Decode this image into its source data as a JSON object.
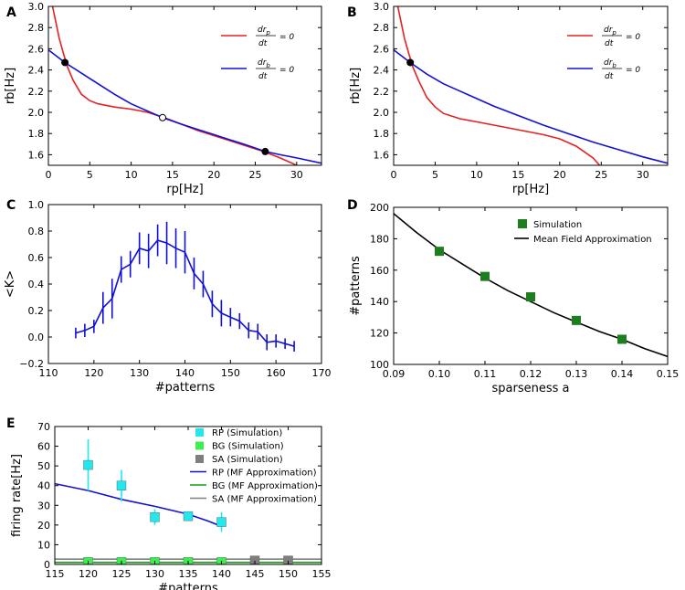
{
  "colors": {
    "red": "#e82020",
    "blue": "#1010d8",
    "cyan": "#22e8ee",
    "green_sim": "#1e7d1e",
    "bg_green": "#3cee50",
    "sa_gray": "#7f7f7f",
    "mf_green": "#12a012"
  },
  "chart_data": [
    {
      "panel": "A",
      "type": "line",
      "xlabel": "rp[Hz]",
      "ylabel": "rb[Hz]",
      "xlim": [
        0,
        33
      ],
      "ylim": [
        1.5,
        3.0
      ],
      "xticks": [
        0,
        5,
        10,
        15,
        20,
        25,
        30
      ],
      "yticks": [
        1.6,
        1.8,
        2.0,
        2.2,
        2.4,
        2.6,
        2.8,
        3.0
      ],
      "ytick_labels": [
        "1.6",
        "1.8",
        "2.0",
        "2.2",
        "2.4",
        "2.6",
        "2.8",
        "3.0"
      ],
      "series": [
        {
          "name": "drp/dt = 0",
          "color": "#e82020",
          "x": [
            0.5,
            0.9,
            1.3,
            1.8,
            2.3,
            3,
            4,
            5,
            6,
            8,
            10,
            12,
            14,
            16,
            18,
            20,
            22,
            24,
            26,
            28,
            30
          ],
          "y": [
            3.0,
            2.85,
            2.7,
            2.56,
            2.43,
            2.3,
            2.17,
            2.11,
            2.08,
            2.05,
            2.03,
            2.0,
            1.95,
            1.89,
            1.83,
            1.78,
            1.73,
            1.68,
            1.63,
            1.57,
            1.5
          ]
        },
        {
          "name": "drb/dt = 0",
          "color": "#1010d8",
          "x": [
            0,
            2,
            5,
            8,
            10,
            13.8,
            16,
            18,
            20,
            22,
            24,
            26.2,
            28,
            30,
            33
          ],
          "y": [
            2.59,
            2.47,
            2.32,
            2.17,
            2.08,
            1.95,
            1.89,
            1.84,
            1.79,
            1.74,
            1.69,
            1.63,
            1.6,
            1.57,
            1.52
          ]
        }
      ],
      "fixed_points": [
        {
          "x": 2.0,
          "y": 2.47,
          "stable": true
        },
        {
          "x": 13.8,
          "y": 1.95,
          "stable": false
        },
        {
          "x": 26.2,
          "y": 1.63,
          "stable": true
        }
      ],
      "legend": [
        {
          "num": "dr",
          "sub": "p",
          "den": "dt",
          "eq": "= 0",
          "color": "#e82020"
        },
        {
          "num": "dr",
          "sub": "b",
          "den": "dt",
          "eq": "= 0",
          "color": "#1010d8"
        }
      ]
    },
    {
      "panel": "B",
      "type": "line",
      "xlabel": "rp[Hz]",
      "ylabel": "rb[Hz]",
      "xlim": [
        0,
        33
      ],
      "ylim": [
        1.5,
        3.0
      ],
      "xticks": [
        0,
        5,
        10,
        15,
        20,
        25,
        30
      ],
      "yticks": [
        1.6,
        1.8,
        2.0,
        2.2,
        2.4,
        2.6,
        2.8,
        3.0
      ],
      "ytick_labels": [
        "1.6",
        "1.8",
        "2.0",
        "2.2",
        "2.4",
        "2.6",
        "2.8",
        "3.0"
      ],
      "series": [
        {
          "name": "drp/dt = 0",
          "color": "#e82020",
          "x": [
            0.5,
            0.9,
            1.3,
            1.8,
            2.3,
            3,
            4,
            5,
            6,
            8,
            10,
            12,
            14,
            16,
            18,
            20,
            22,
            24,
            24.8
          ],
          "y": [
            3.0,
            2.85,
            2.7,
            2.56,
            2.43,
            2.3,
            2.14,
            2.05,
            1.99,
            1.94,
            1.91,
            1.88,
            1.85,
            1.82,
            1.79,
            1.75,
            1.68,
            1.57,
            1.5
          ]
        },
        {
          "name": "drb/dt = 0",
          "color": "#1010d8",
          "x": [
            0,
            2,
            4,
            6,
            8,
            10,
            12,
            15,
            18,
            21,
            24,
            27,
            30,
            33
          ],
          "y": [
            2.59,
            2.47,
            2.36,
            2.27,
            2.2,
            2.13,
            2.06,
            1.97,
            1.88,
            1.8,
            1.72,
            1.65,
            1.58,
            1.52
          ]
        }
      ],
      "fixed_points": [
        {
          "x": 2.0,
          "y": 2.47,
          "stable": true
        }
      ],
      "legend": [
        {
          "num": "dr",
          "sub": "p",
          "den": "dt",
          "eq": "= 0",
          "color": "#e82020"
        },
        {
          "num": "dr",
          "sub": "b",
          "den": "dt",
          "eq": "= 0",
          "color": "#1010d8"
        }
      ]
    },
    {
      "panel": "C",
      "type": "line",
      "xlabel": "#patterns",
      "ylabel": "<K>",
      "xlim": [
        110,
        170
      ],
      "ylim": [
        -0.2,
        1.0
      ],
      "xticks": [
        110,
        120,
        130,
        140,
        150,
        160,
        170
      ],
      "yticks": [
        -0.2,
        0.0,
        0.2,
        0.4,
        0.6,
        0.8,
        1.0
      ],
      "ytick_labels": [
        "−0.2",
        "0.0",
        "0.2",
        "0.4",
        "0.6",
        "0.8",
        "1.0"
      ],
      "series": [
        {
          "name": "<K>",
          "color": "#1010d8",
          "x": [
            116,
            118,
            120,
            122,
            124,
            126,
            128,
            130,
            132,
            134,
            136,
            138,
            140,
            142,
            144,
            146,
            148,
            150,
            152,
            154,
            156,
            158,
            160,
            162,
            164
          ],
          "y": [
            0.03,
            0.05,
            0.08,
            0.22,
            0.29,
            0.51,
            0.55,
            0.67,
            0.65,
            0.73,
            0.71,
            0.67,
            0.64,
            0.48,
            0.4,
            0.25,
            0.18,
            0.15,
            0.12,
            0.05,
            0.04,
            -0.04,
            -0.03,
            -0.05,
            -0.07
          ],
          "err": [
            0.04,
            0.05,
            0.05,
            0.12,
            0.15,
            0.1,
            0.1,
            0.12,
            0.13,
            0.12,
            0.16,
            0.15,
            0.16,
            0.12,
            0.1,
            0.1,
            0.1,
            0.07,
            0.06,
            0.06,
            0.06,
            0.06,
            0.05,
            0.04,
            0.04
          ]
        }
      ]
    },
    {
      "panel": "D",
      "type": "scatter",
      "xlabel": "sparseness a",
      "ylabel": "#patterns",
      "xlim": [
        0.09,
        0.15
      ],
      "ylim": [
        100,
        200
      ],
      "xticks": [
        0.09,
        0.1,
        0.11,
        0.12,
        0.13,
        0.14,
        0.15
      ],
      "xtick_labels": [
        "0.09",
        "0.10",
        "0.11",
        "0.12",
        "0.13",
        "0.14",
        "0.15"
      ],
      "yticks": [
        100,
        120,
        140,
        160,
        180,
        200
      ],
      "series": [
        {
          "name": "Simulation",
          "color": "#1e7d1e",
          "x": [
            0.1,
            0.11,
            0.12,
            0.13,
            0.14
          ],
          "y": [
            172,
            156,
            143,
            128,
            116
          ]
        },
        {
          "name": "Mean Field Approximation",
          "color": "#000000",
          "x": [
            0.09,
            0.095,
            0.1,
            0.105,
            0.11,
            0.115,
            0.12,
            0.125,
            0.13,
            0.135,
            0.14,
            0.145,
            0.15
          ],
          "y": [
            196,
            184,
            173,
            164,
            155,
            147,
            140,
            133,
            127,
            121,
            116,
            110,
            105
          ]
        }
      ],
      "legend": [
        "Simulation",
        "Mean Field Approximation"
      ]
    },
    {
      "panel": "E",
      "type": "scatter",
      "xlabel": "#patterns",
      "ylabel": "firing rate[Hz]",
      "xlim": [
        115,
        155
      ],
      "ylim": [
        0,
        70
      ],
      "xticks": [
        115,
        120,
        125,
        130,
        135,
        140,
        145,
        150,
        155
      ],
      "yticks": [
        0,
        10,
        20,
        30,
        40,
        50,
        60,
        70
      ],
      "series": [
        {
          "name": "RP (Simulation)",
          "color": "#22e8ee",
          "x": [
            120,
            125,
            130,
            135,
            140
          ],
          "y": [
            50.5,
            40,
            24,
            24.5,
            21.5
          ],
          "err": [
            13,
            8,
            4,
            2,
            5
          ]
        },
        {
          "name": "BG (Simulation)",
          "color": "#3cee50",
          "x": [
            120,
            125,
            130,
            135,
            140
          ],
          "y": [
            1.2,
            1.2,
            1.2,
            1.2,
            1.2
          ]
        },
        {
          "name": "SA (Simulation)",
          "color": "#7f7f7f",
          "x": [
            145,
            150
          ],
          "y": [
            2.0,
            2.0
          ]
        },
        {
          "name": "RP (MF Approximation)",
          "color": "#1010d8",
          "x": [
            115,
            120,
            125,
            130,
            135,
            138,
            139.5,
            140
          ],
          "y": [
            41,
            37.5,
            33,
            29.5,
            25.5,
            22,
            20,
            20
          ]
        },
        {
          "name": "BG (MF Approximation)",
          "color": "#12a012",
          "x": [
            115,
            155
          ],
          "y": [
            1.0,
            1.0
          ]
        },
        {
          "name": "SA (MF Approximation)",
          "color": "#7f7f7f",
          "x": [
            115,
            155
          ],
          "y": [
            2.7,
            2.7
          ]
        }
      ],
      "legend": [
        "RP (Simulation)",
        "BG (Simulation)",
        "SA (Simulation)",
        "RP (MF Approximation)",
        "BG (MF Approximation)",
        "SA (MF Approximation)"
      ]
    }
  ]
}
